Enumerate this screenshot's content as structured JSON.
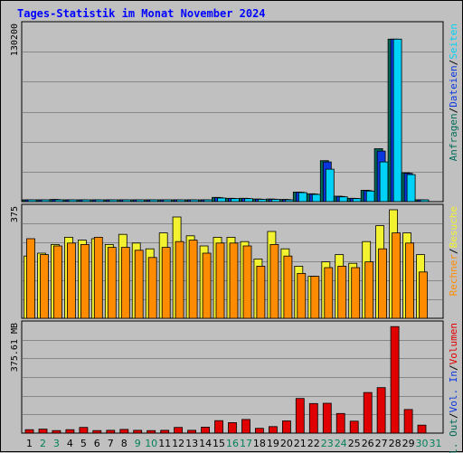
{
  "title": "Tages-Statistik im Monat November 2024",
  "colors": {
    "background": "#c0c0c0",
    "title": "#0000ff",
    "hits": "#006b58",
    "files": "#0a36e0",
    "pages": "#00d2f7",
    "visits": "#f2f230",
    "sites": "#ff8c00",
    "volume": "#e00000",
    "weekend_day": "#00805a",
    "weekday": "#000000"
  },
  "chart_data": [
    {
      "type": "bar",
      "panel": "requests",
      "categories": [
        "1",
        "2",
        "3",
        "4",
        "5",
        "6",
        "7",
        "8",
        "9",
        "10",
        "11",
        "12",
        "13",
        "14",
        "15",
        "16",
        "17",
        "18",
        "19",
        "20",
        "21",
        "22",
        "23",
        "24",
        "25",
        "26",
        "27",
        "28",
        "29",
        "30",
        "31"
      ],
      "weekend_days": [
        "2",
        "3",
        "9",
        "10",
        "16",
        "17",
        "23",
        "24",
        "30",
        "31"
      ],
      "y_tick_label": "130200",
      "ylim": [
        0,
        145000
      ],
      "series": [
        {
          "name": "Anfragen",
          "values": [
            700,
            600,
            1800,
            900,
            700,
            600,
            500,
            600,
            700,
            500,
            600,
            700,
            600,
            700,
            3500,
            2800,
            2800,
            2200,
            2200,
            1800,
            8000,
            6500,
            34000,
            4500,
            2800,
            9500,
            44000,
            135000,
            24000,
            1500,
            0
          ]
        },
        {
          "name": "Dateien",
          "values": [
            650,
            550,
            1700,
            850,
            650,
            550,
            450,
            550,
            650,
            450,
            550,
            650,
            550,
            650,
            3300,
            2650,
            2650,
            2050,
            2050,
            1700,
            7800,
            6300,
            33000,
            4300,
            2700,
            9200,
            42000,
            135000,
            23500,
            1400,
            0
          ]
        },
        {
          "name": "Seiten",
          "values": [
            600,
            500,
            1500,
            800,
            600,
            500,
            400,
            500,
            600,
            400,
            500,
            600,
            500,
            600,
            3000,
            2500,
            2500,
            1900,
            1900,
            1500,
            7500,
            6000,
            27000,
            4000,
            2500,
            8800,
            33000,
            135000,
            22500,
            1300,
            0
          ]
        }
      ],
      "side_labels": [
        "Seiten",
        "Dateien",
        "Anfragen"
      ]
    },
    {
      "type": "bar",
      "panel": "visits",
      "categories": [
        "1",
        "2",
        "3",
        "4",
        "5",
        "6",
        "7",
        "8",
        "9",
        "10",
        "11",
        "12",
        "13",
        "14",
        "15",
        "16",
        "17",
        "18",
        "19",
        "20",
        "21",
        "22",
        "23",
        "24",
        "25",
        "26",
        "27",
        "28",
        "29",
        "30",
        "31"
      ],
      "y_tick_label": "375",
      "ylim": [
        0,
        375
      ],
      "series": [
        {
          "name": "Besuche",
          "values": [
            215,
            225,
            255,
            280,
            270,
            275,
            255,
            290,
            260,
            240,
            295,
            350,
            285,
            250,
            280,
            280,
            265,
            205,
            300,
            240,
            180,
            145,
            195,
            220,
            190,
            265,
            320,
            375,
            295,
            220,
            0
          ]
        },
        {
          "name": "Rechner",
          "values": [
            275,
            220,
            250,
            260,
            255,
            280,
            245,
            245,
            235,
            210,
            245,
            265,
            270,
            225,
            260,
            260,
            250,
            180,
            255,
            215,
            155,
            145,
            175,
            180,
            175,
            195,
            240,
            295,
            260,
            160,
            0
          ]
        }
      ],
      "side_labels": [
        "Besuche",
        "Rechner"
      ]
    },
    {
      "type": "bar",
      "panel": "volume",
      "categories": [
        "1",
        "2",
        "3",
        "4",
        "5",
        "6",
        "7",
        "8",
        "9",
        "10",
        "11",
        "12",
        "13",
        "14",
        "15",
        "16",
        "17",
        "18",
        "19",
        "20",
        "21",
        "22",
        "23",
        "24",
        "25",
        "26",
        "27",
        "28",
        "29",
        "30",
        "31"
      ],
      "y_tick_label": "375.61 MB",
      "ylim": [
        0,
        375.61
      ],
      "series": [
        {
          "name": "Volumen",
          "values": [
            12,
            14,
            9,
            12,
            20,
            9,
            10,
            13,
            10,
            9,
            10,
            20,
            10,
            21,
            44,
            37,
            48,
            17,
            23,
            43,
            122,
            104,
            105,
            69,
            42,
            143,
            160,
            375,
            83,
            28,
            0
          ]
        }
      ],
      "side_labels": [
        "Volumen",
        "Vol. In",
        "Vol. Out"
      ]
    }
  ]
}
